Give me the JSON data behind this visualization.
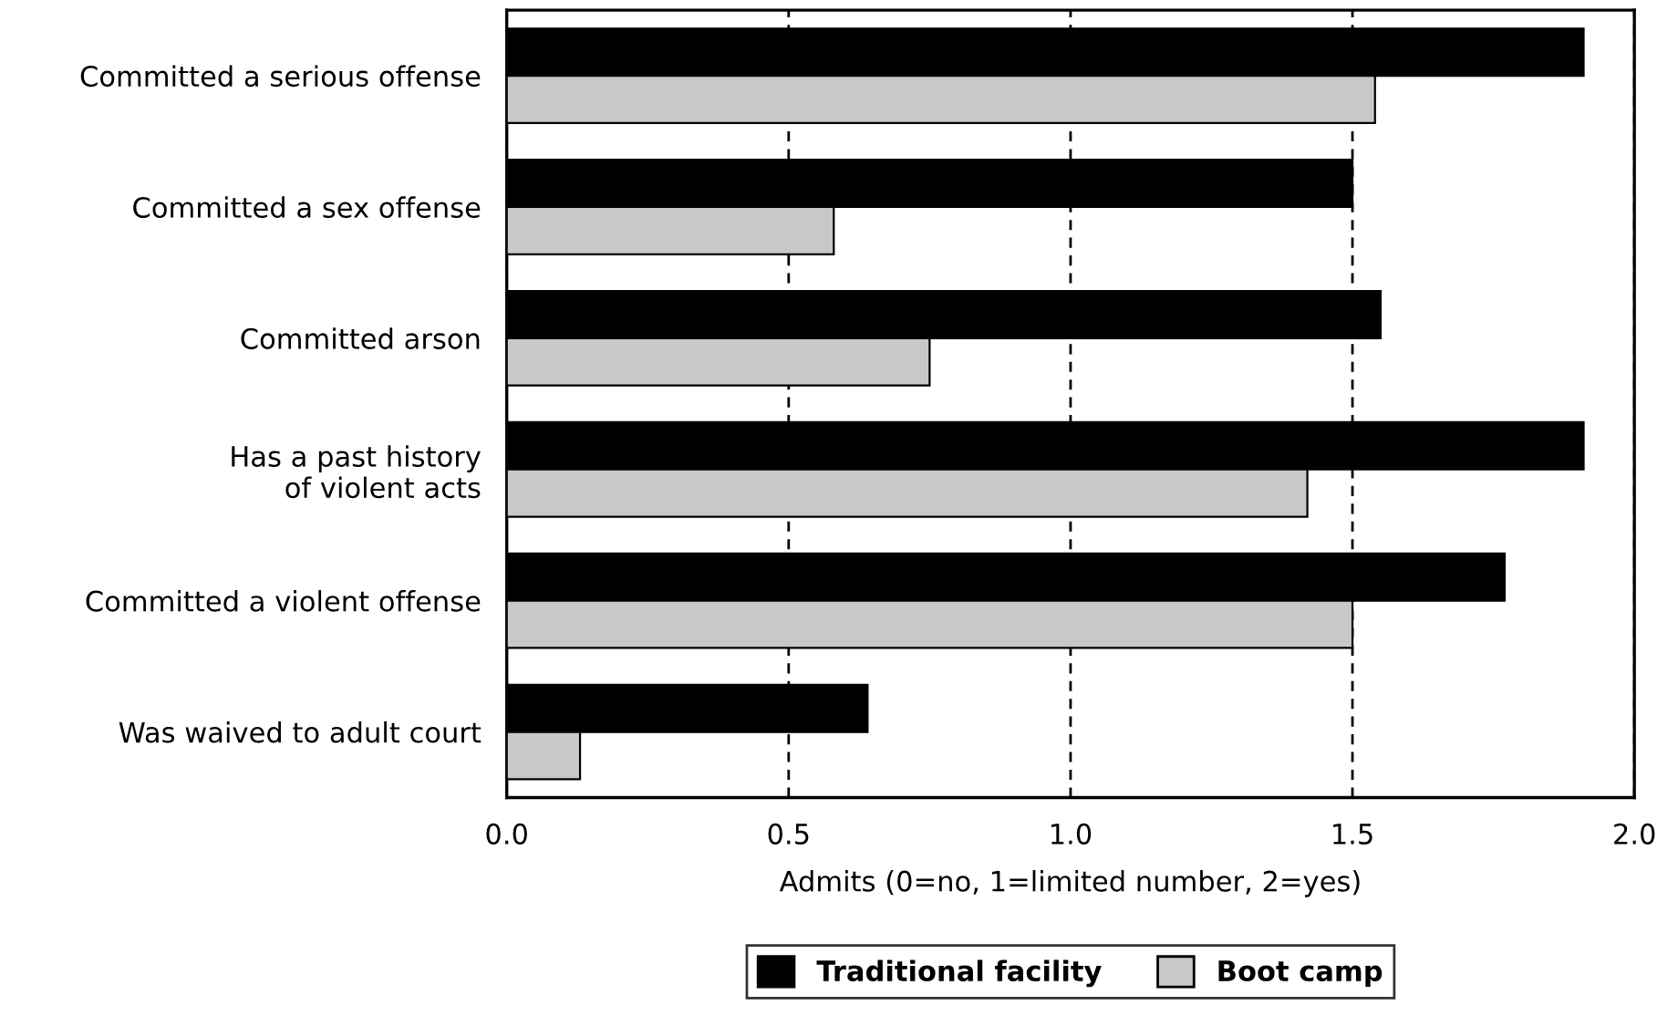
{
  "chart_data": {
    "type": "bar",
    "orientation": "horizontal",
    "xlabel": "Admits (0=no, 1=limited number, 2=yes)",
    "categories": [
      "Committed a serious offense",
      "Committed a sex offense",
      "Committed arson",
      "Has a past history\nof violent acts",
      "Committed a violent offense",
      "Was waived to adult court"
    ],
    "series": [
      {
        "name": "Traditional facility",
        "color": "#000000",
        "values": [
          1.91,
          1.5,
          1.55,
          1.91,
          1.77,
          0.64
        ]
      },
      {
        "name": "Boot camp",
        "color": "#c8c8c8",
        "values": [
          1.54,
          0.58,
          0.75,
          1.42,
          1.5,
          0.13
        ]
      }
    ],
    "xlim": [
      0,
      2.0
    ],
    "xticks": [
      {
        "value": 0,
        "label": "0.0"
      },
      0.5,
      {
        "value": 1,
        "label": "1.0"
      },
      1.5,
      {
        "value": 2,
        "label": "2.0"
      }
    ],
    "grid": "x",
    "legend": "bottom"
  }
}
